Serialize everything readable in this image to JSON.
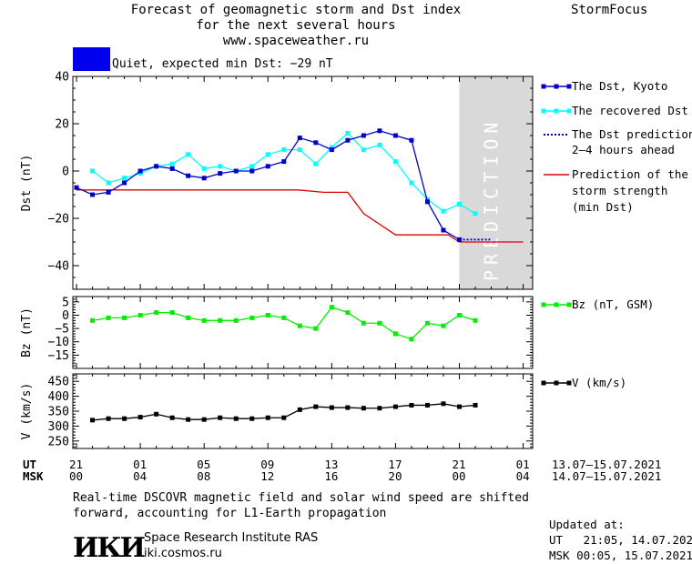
{
  "header": {
    "title_lines": [
      "Forecast of geomagnetic storm and Dst index",
      "for the next several hours",
      "www.spaceweather.ru"
    ],
    "brand": "StormFocus"
  },
  "status": {
    "color": "#0000ee",
    "text": "Quiet, expected min Dst: −29 nT"
  },
  "legend": {
    "dst_kyoto": "The Dst, Kyoto",
    "dst_recovered": "The recovered Dst",
    "dst_prediction": [
      "The Dst prediction",
      "2–4 hours ahead"
    ],
    "storm_strength": [
      "Prediction of the",
      "storm strength",
      "(min Dst)"
    ],
    "bz": "Bz (nT, GSM)",
    "v": "V (km/s)"
  },
  "colors": {
    "kyoto": "#0000cc",
    "recovered": "#00ffff",
    "prediction": "#0000cc",
    "strength": "#dd0000",
    "bz": "#00ee00",
    "v": "#000000",
    "prediction_band": "#d9d9d9"
  },
  "prediction_label": "PREDICTION",
  "time_axis": {
    "ut_label": "UT",
    "msk_label": "MSK",
    "ut_ticks": [
      "21",
      "01",
      "05",
      "09",
      "13",
      "17",
      "21",
      "01"
    ],
    "msk_ticks": [
      "00",
      "04",
      "08",
      "12",
      "16",
      "20",
      "00",
      "04"
    ],
    "ut_range": "13.07–15.07.2021",
    "msk_range": "14.07–15.07.2021"
  },
  "footer": {
    "note_lines": [
      "Real-time DSCOVR magnetic field and solar wind speed are shifted",
      "forward, accounting for L1-Earth propagation"
    ],
    "logo": "ИКИ",
    "institute": "Space Research Institute RAS",
    "site": "iki.cosmos.ru",
    "updated_title": "Updated at:",
    "updated_ut": "UT   21:05, 14.07.2021",
    "updated_msk": "MSK 00:05, 15.07.2021"
  },
  "chart_data": [
    {
      "type": "line",
      "ylabel": "Dst (nT)",
      "ylim": [
        -50,
        40
      ],
      "yticks": [
        40,
        20,
        0,
        -20,
        -40
      ],
      "x_hours_ut": "hours since 13.07 21 UT",
      "prediction_region_hours": [
        24,
        28
      ],
      "series": [
        {
          "name": "The Dst, Kyoto",
          "x": [
            0,
            1,
            2,
            3,
            4,
            5,
            6,
            7,
            8,
            9,
            10,
            11,
            12,
            13,
            14,
            15,
            16,
            17,
            18,
            19,
            20,
            21,
            22,
            23,
            24
          ],
          "values": [
            -7,
            -10,
            -9,
            -5,
            0,
            2,
            1,
            -2,
            -3,
            -1,
            0,
            0,
            2,
            4,
            14,
            12,
            9,
            13,
            15,
            17,
            15,
            13,
            -13,
            -25,
            -29
          ]
        },
        {
          "name": "The recovered Dst",
          "x": [
            1,
            2,
            3,
            4,
            5,
            6,
            7,
            8,
            9,
            10,
            11,
            12,
            13,
            14,
            15,
            16,
            17,
            18,
            19,
            20,
            21,
            22,
            23,
            24,
            25
          ],
          "values": [
            0,
            -5,
            -3,
            -1,
            2,
            3,
            7,
            1,
            2,
            0,
            2,
            7,
            9,
            9,
            3,
            10,
            16,
            9,
            11,
            4,
            -5,
            -12,
            -17,
            -14,
            -18
          ]
        },
        {
          "name": "The Dst prediction 2–4 hours ahead",
          "x": [
            24,
            25,
            26
          ],
          "values": [
            -29,
            -29,
            -29
          ]
        },
        {
          "name": "Prediction of the storm strength (min Dst)",
          "x": [
            0,
            13.9,
            15.5,
            17,
            18,
            20,
            22,
            23.3,
            24,
            28
          ],
          "values": [
            -8,
            -8,
            -9,
            -9,
            -18,
            -27,
            -27,
            -27,
            -30,
            -30
          ]
        }
      ]
    },
    {
      "type": "line",
      "ylabel": "Bz (nT)",
      "ylim": [
        -20,
        7
      ],
      "yticks": [
        5,
        0,
        -5,
        -10,
        -15
      ],
      "series": [
        {
          "name": "Bz (nT, GSM)",
          "x": [
            1,
            2,
            3,
            4,
            5,
            6,
            7,
            8,
            9,
            10,
            11,
            12,
            13,
            14,
            15,
            16,
            17,
            18,
            19,
            20,
            21,
            22,
            23,
            24,
            25
          ],
          "values": [
            -2,
            -1,
            -1,
            0,
            1,
            1,
            -1,
            -2,
            -2,
            -2,
            -1,
            0,
            -1,
            -4,
            -5,
            3,
            1,
            -3,
            -3,
            -7,
            -9,
            -3,
            -4,
            0,
            -2
          ]
        }
      ]
    },
    {
      "type": "line",
      "ylabel": "V (km/s)",
      "ylim": [
        225,
        475
      ],
      "yticks": [
        450,
        400,
        350,
        300,
        250
      ],
      "series": [
        {
          "name": "V (km/s)",
          "x": [
            1,
            2,
            3,
            4,
            5,
            6,
            7,
            8,
            9,
            10,
            11,
            12,
            13,
            14,
            15,
            16,
            17,
            18,
            19,
            20,
            21,
            22,
            23,
            24,
            25
          ],
          "values": [
            320,
            325,
            325,
            330,
            340,
            328,
            322,
            322,
            328,
            325,
            325,
            328,
            328,
            355,
            365,
            362,
            362,
            360,
            360,
            365,
            370,
            370,
            375,
            365,
            370
          ]
        }
      ]
    }
  ]
}
